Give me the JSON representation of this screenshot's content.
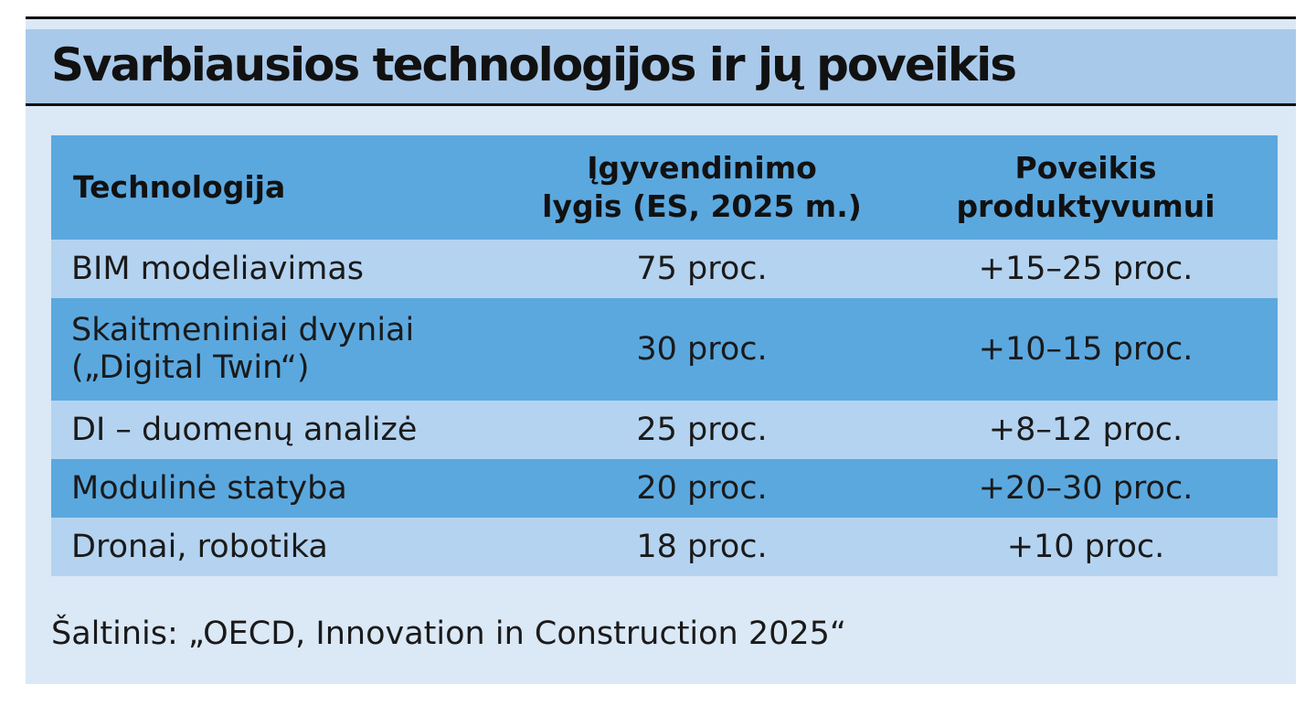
{
  "title": "Svarbiausios technologijos ir jų poveikis",
  "table": {
    "headers": {
      "technology": "Technologija",
      "level_line1": "Įgyvendinimo",
      "level_line2": "lygis (ES, 2025 m.)",
      "impact_line1": "Poveikis",
      "impact_line2": "produktyvumui"
    },
    "rows": [
      {
        "technology": "BIM modeliavimas",
        "level": "75 proc.",
        "impact": "+15–25 proc."
      },
      {
        "technology_line1": "Skaitmeniniai dvyniai",
        "technology_line2": "(„Digital Twin“)",
        "level": "30 proc.",
        "impact": "+10–15 proc."
      },
      {
        "technology": "DI – duomenų analizė",
        "level": "25 proc.",
        "impact": "+8–12 proc."
      },
      {
        "technology": "Modulinė statyba",
        "level": "20 proc.",
        "impact": "+20–30 proc."
      },
      {
        "technology": "Dronai, robotika",
        "level": "18 proc.",
        "impact": "+10 proc."
      }
    ]
  },
  "source": "Šaltinis: „OECD, Innovation in Construction 2025“",
  "colors": {
    "panel_background": "#dbe8f6",
    "title_bar": "#a9c9ea",
    "row_dark": "#5ba8df",
    "row_light": "#b4d3f0"
  }
}
